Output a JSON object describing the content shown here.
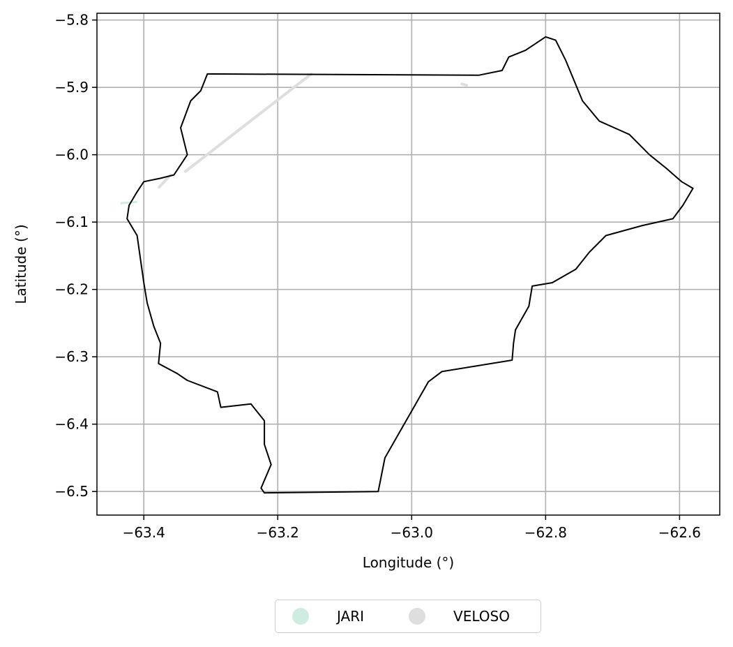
{
  "chart_data": {
    "type": "map",
    "xlabel": "Longitude (°)",
    "ylabel": "Latitude (°)",
    "xlim": [
      -63.47,
      -62.54
    ],
    "ylim": [
      -6.535,
      -5.79
    ],
    "xticks": [
      -63.4,
      -63.2,
      -63.0,
      -62.8,
      -62.6
    ],
    "xtick_labels": [
      "−63.4",
      "−63.2",
      "−63.0",
      "−62.8",
      "−62.6"
    ],
    "yticks": [
      -5.8,
      -5.9,
      -6.0,
      -6.1,
      -6.2,
      -6.3,
      -6.4,
      -6.5
    ],
    "ytick_labels": [
      "−5.8",
      "−5.9",
      "−6.0",
      "−6.1",
      "−6.2",
      "−6.3",
      "−6.4",
      "−6.5"
    ],
    "grid": true,
    "legend_placement": "bottom-center",
    "legend": [
      {
        "label": "JARI",
        "color": "#d0ece0"
      },
      {
        "label": "VELOSO",
        "color": "#dedede"
      }
    ],
    "boundary_color": "#000000",
    "boundary": [
      [
        -63.305,
        -5.88
      ],
      [
        -62.9,
        -5.882
      ],
      [
        -62.865,
        -5.875
      ],
      [
        -62.855,
        -5.855
      ],
      [
        -62.83,
        -5.845
      ],
      [
        -62.8,
        -5.825
      ],
      [
        -62.785,
        -5.83
      ],
      [
        -62.77,
        -5.86
      ],
      [
        -62.745,
        -5.92
      ],
      [
        -62.72,
        -5.95
      ],
      [
        -62.675,
        -5.97
      ],
      [
        -62.645,
        -6.0
      ],
      [
        -62.62,
        -6.02
      ],
      [
        -62.597,
        -6.04
      ],
      [
        -62.58,
        -6.05
      ],
      [
        -62.595,
        -6.075
      ],
      [
        -62.61,
        -6.095
      ],
      [
        -62.655,
        -6.105
      ],
      [
        -62.71,
        -6.12
      ],
      [
        -62.735,
        -6.145
      ],
      [
        -62.755,
        -6.17
      ],
      [
        -62.79,
        -6.19
      ],
      [
        -62.82,
        -6.195
      ],
      [
        -62.825,
        -6.225
      ],
      [
        -62.845,
        -6.26
      ],
      [
        -62.848,
        -6.28
      ],
      [
        -62.85,
        -6.305
      ],
      [
        -62.955,
        -6.322
      ],
      [
        -62.975,
        -6.337
      ],
      [
        -63.04,
        -6.45
      ],
      [
        -63.05,
        -6.5
      ],
      [
        -63.22,
        -6.502
      ],
      [
        -63.225,
        -6.495
      ],
      [
        -63.21,
        -6.46
      ],
      [
        -63.22,
        -6.43
      ],
      [
        -63.22,
        -6.395
      ],
      [
        -63.24,
        -6.37
      ],
      [
        -63.285,
        -6.375
      ],
      [
        -63.29,
        -6.352
      ],
      [
        -63.335,
        -6.335
      ],
      [
        -63.35,
        -6.325
      ],
      [
        -63.378,
        -6.31
      ],
      [
        -63.375,
        -6.28
      ],
      [
        -63.385,
        -6.255
      ],
      [
        -63.395,
        -6.22
      ],
      [
        -63.4,
        -6.19
      ],
      [
        -63.405,
        -6.155
      ],
      [
        -63.41,
        -6.12
      ],
      [
        -63.425,
        -6.095
      ],
      [
        -63.422,
        -6.075
      ],
      [
        -63.41,
        -6.055
      ],
      [
        -63.4,
        -6.04
      ],
      [
        -63.375,
        -6.035
      ],
      [
        -63.355,
        -6.03
      ],
      [
        -63.335,
        -6.0
      ],
      [
        -63.345,
        -5.96
      ],
      [
        -63.33,
        -5.92
      ],
      [
        -63.315,
        -5.905
      ],
      [
        -63.305,
        -5.88
      ]
    ],
    "jari_line": [
      [
        -63.435,
        -6.072
      ],
      [
        -63.41,
        -6.07
      ]
    ],
    "veloso_lines": [
      [
        [
          -63.377,
          -6.048
        ],
        [
          -63.36,
          -6.03
        ]
      ],
      [
        [
          -63.338,
          -6.025
        ],
        [
          -63.15,
          -5.88
        ]
      ],
      [
        [
          -62.925,
          -5.895
        ],
        [
          -62.918,
          -5.897
        ]
      ]
    ]
  }
}
